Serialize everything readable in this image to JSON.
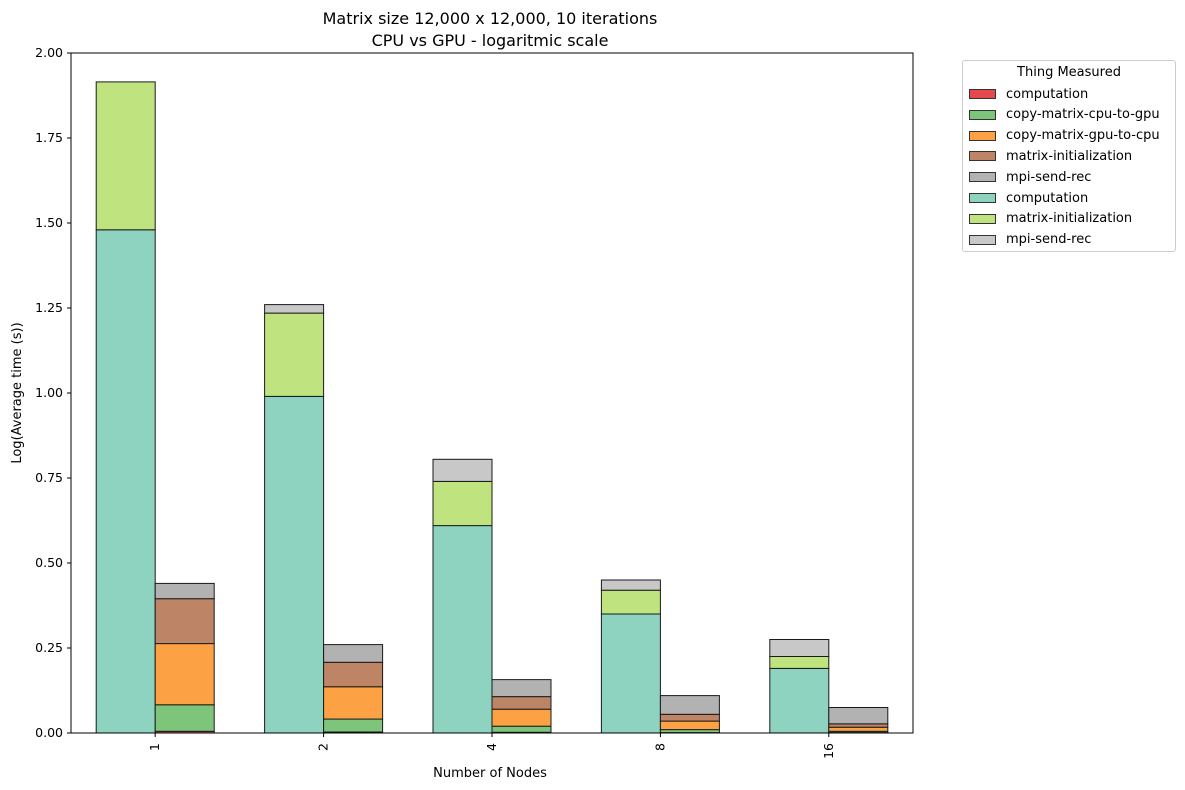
{
  "chart_data": {
    "type": "bar",
    "stacked": true,
    "title_line1": "Matrix size 12,000 x 12,000, 10 iterations",
    "title_line2": "CPU vs GPU - logaritmic scale",
    "xlabel": "Number of Nodes",
    "ylabel": "Log(Average time (s))",
    "categories": [
      "1",
      "2",
      "4",
      "8",
      "16"
    ],
    "ylim": [
      0,
      2.0
    ],
    "yticks": [
      {
        "value": 0.0,
        "label": "0.00"
      },
      {
        "value": 0.25,
        "label": "0.25"
      },
      {
        "value": 0.5,
        "label": "0.50"
      },
      {
        "value": 0.75,
        "label": "0.75"
      },
      {
        "value": 1.0,
        "label": "1.00"
      },
      {
        "value": 1.25,
        "label": "1.25"
      },
      {
        "value": 1.5,
        "label": "1.50"
      },
      {
        "value": 1.75,
        "label": "1.75"
      },
      {
        "value": 2.0,
        "label": "2.00"
      }
    ],
    "legend_title": "Thing Measured",
    "legend_placement": "outside-right",
    "groups": [
      {
        "group": "CPU",
        "series": [
          {
            "name": "computation",
            "color": "#8dd3c0",
            "values": [
              1.48,
              0.99,
              0.61,
              0.35,
              0.19
            ]
          },
          {
            "name": "matrix-initialization",
            "color": "#bfe47f",
            "values": [
              0.435,
              0.245,
              0.13,
              0.07,
              0.035
            ]
          },
          {
            "name": "mpi-send-rec",
            "color": "#c8c8c8",
            "values": [
              0.0,
              0.025,
              0.065,
              0.03,
              0.05
            ]
          }
        ]
      },
      {
        "group": "GPU",
        "series": [
          {
            "name": "computation",
            "color": "#e5484d",
            "values": [
              0.005,
              0.003,
              0.002,
              0.001,
              0.001
            ]
          },
          {
            "name": "copy-matrix-cpu-to-gpu",
            "color": "#7dc57a",
            "values": [
              0.078,
              0.038,
              0.018,
              0.009,
              0.004
            ]
          },
          {
            "name": "copy-matrix-gpu-to-cpu",
            "color": "#fda244",
            "values": [
              0.18,
              0.095,
              0.05,
              0.025,
              0.012
            ]
          },
          {
            "name": "matrix-initialization",
            "color": "#bd8465",
            "values": [
              0.132,
              0.072,
              0.037,
              0.02,
              0.01
            ]
          },
          {
            "name": "mpi-send-rec",
            "color": "#b2b2b2",
            "values": [
              0.045,
              0.052,
              0.05,
              0.055,
              0.048
            ]
          }
        ]
      }
    ],
    "legend": [
      {
        "label": "computation",
        "color": "#e5484d"
      },
      {
        "label": "copy-matrix-cpu-to-gpu",
        "color": "#7dc57a"
      },
      {
        "label": "copy-matrix-gpu-to-cpu",
        "color": "#fda244"
      },
      {
        "label": "matrix-initialization",
        "color": "#bd8465"
      },
      {
        "label": "mpi-send-rec",
        "color": "#b2b2b2"
      },
      {
        "label": "computation",
        "color": "#8dd3c0"
      },
      {
        "label": "matrix-initialization",
        "color": "#bfe47f"
      },
      {
        "label": "mpi-send-rec",
        "color": "#c8c8c8"
      }
    ]
  }
}
